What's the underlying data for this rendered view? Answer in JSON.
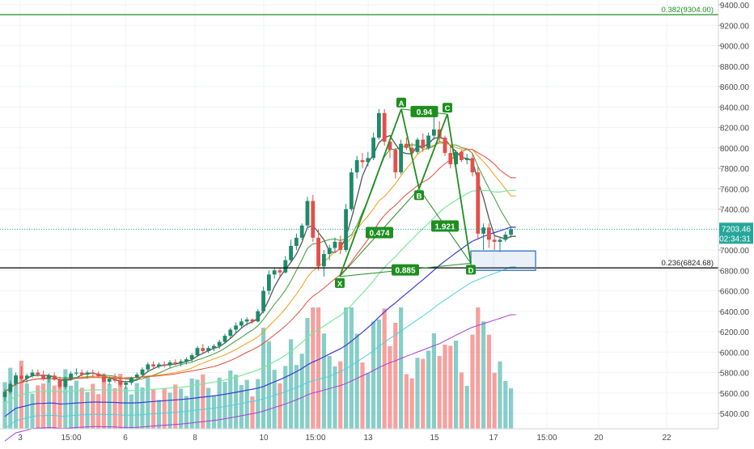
{
  "chart_data": {
    "type": "candlestick",
    "y_axis": {
      "min": 5300,
      "max": 9500,
      "ticks": [
        5400,
        5600,
        5800,
        6000,
        6200,
        6400,
        6600,
        6800,
        7000,
        7200,
        7400,
        7600,
        7800,
        8000,
        8200,
        8400,
        8600,
        8800,
        9000,
        9200,
        9400
      ],
      "tick_labels": [
        "5400.00",
        "5600.00",
        "5800.00",
        "6000.00",
        "6200.00",
        "6400.00",
        "6600.00",
        "6800.00",
        "7000.00",
        "7200.00",
        "7400.00",
        "7600.00",
        "7800.00",
        "8000.00",
        "8200.00",
        "8400.00",
        "8600.00",
        "8800.00",
        "9000.00",
        "9200.00",
        "9400.00"
      ]
    },
    "x_axis": {
      "tick_labels": [
        "3",
        "15:00",
        "6",
        "8",
        "10",
        "15:00",
        "13",
        "15",
        "17",
        "15:00",
        "20",
        "22"
      ]
    },
    "last_price": {
      "value": 7203.46,
      "label": "7203.46",
      "countdown": "02:34:31",
      "color": "#26a69a"
    },
    "fib_levels": [
      {
        "label": "0.382(9304.00)",
        "value": 9304,
        "color": "#1e8e1e"
      },
      {
        "label": "0.236(6824.68)",
        "value": 6824.68,
        "color": "#000000"
      }
    ],
    "harmonic_pattern": {
      "points": [
        {
          "name": "X",
          "price": 6740
        },
        {
          "name": "A",
          "price": 8380
        },
        {
          "name": "B",
          "price": 7600
        },
        {
          "name": "C",
          "price": 8330
        },
        {
          "name": "D",
          "price": 6870
        }
      ],
      "ratios": [
        "0.474",
        "0.94",
        "1.921",
        "0.885"
      ],
      "color": "#1e8e1e"
    },
    "target_zone": {
      "top": 6990,
      "bottom": 6800,
      "color": "#4a86c8"
    },
    "candles": [
      [
        5560,
        5640,
        5520,
        5610
      ],
      [
        5610,
        5720,
        5590,
        5690
      ],
      [
        5690,
        5800,
        5670,
        5770
      ],
      [
        5770,
        5860,
        5720,
        5740
      ],
      [
        5740,
        5790,
        5700,
        5770
      ],
      [
        5770,
        5830,
        5750,
        5800
      ],
      [
        5800,
        5830,
        5760,
        5780
      ],
      [
        5780,
        5820,
        5720,
        5740
      ],
      [
        5740,
        5790,
        5700,
        5770
      ],
      [
        5770,
        5800,
        5720,
        5730
      ],
      [
        5730,
        5760,
        5640,
        5660
      ],
      [
        5660,
        5760,
        5640,
        5740
      ],
      [
        5740,
        5810,
        5720,
        5790
      ],
      [
        5790,
        5840,
        5770,
        5800
      ],
      [
        5800,
        5830,
        5760,
        5780
      ],
      [
        5780,
        5820,
        5740,
        5800
      ],
      [
        5800,
        5830,
        5760,
        5790
      ],
      [
        5790,
        5810,
        5750,
        5760
      ],
      [
        5760,
        5790,
        5700,
        5710
      ],
      [
        5710,
        5760,
        5680,
        5740
      ],
      [
        5740,
        5790,
        5700,
        5720
      ],
      [
        5720,
        5760,
        5660,
        5680
      ],
      [
        5680,
        5720,
        5640,
        5700
      ],
      [
        5700,
        5760,
        5680,
        5750
      ],
      [
        5750,
        5800,
        5720,
        5780
      ],
      [
        5780,
        5850,
        5760,
        5830
      ],
      [
        5830,
        5900,
        5810,
        5880
      ],
      [
        5880,
        5910,
        5840,
        5860
      ],
      [
        5860,
        5900,
        5840,
        5880
      ],
      [
        5880,
        5910,
        5850,
        5870
      ],
      [
        5870,
        5920,
        5850,
        5900
      ],
      [
        5900,
        5930,
        5870,
        5890
      ],
      [
        5890,
        5930,
        5860,
        5910
      ],
      [
        5910,
        5950,
        5880,
        5930
      ],
      [
        5930,
        5990,
        5900,
        5970
      ],
      [
        5970,
        6060,
        5950,
        6040
      ],
      [
        6040,
        6080,
        5990,
        6010
      ],
      [
        6010,
        6060,
        5990,
        6040
      ],
      [
        6040,
        6080,
        6010,
        6060
      ],
      [
        6060,
        6120,
        6030,
        6100
      ],
      [
        6100,
        6180,
        6080,
        6160
      ],
      [
        6160,
        6240,
        6140,
        6220
      ],
      [
        6220,
        6290,
        6180,
        6260
      ],
      [
        6260,
        6330,
        6230,
        6300
      ],
      [
        6300,
        6340,
        6260,
        6320
      ],
      [
        6320,
        6330,
        6280,
        6300
      ],
      [
        6300,
        6420,
        6290,
        6400
      ],
      [
        6400,
        6640,
        6380,
        6600
      ],
      [
        6600,
        6800,
        6560,
        6760
      ],
      [
        6760,
        6830,
        6720,
        6800
      ],
      [
        6800,
        6830,
        6740,
        6780
      ],
      [
        6780,
        6940,
        6770,
        6900
      ],
      [
        6900,
        7100,
        6880,
        7040
      ],
      [
        7040,
        7160,
        7000,
        7120
      ],
      [
        7120,
        7260,
        7100,
        7240
      ],
      [
        7240,
        7520,
        7220,
        7480
      ],
      [
        7480,
        7540,
        7080,
        7120
      ],
      [
        7120,
        7200,
        6800,
        6840
      ],
      [
        6840,
        7000,
        6740,
        6960
      ],
      [
        6960,
        7050,
        6900,
        7020
      ],
      [
        7020,
        7120,
        6980,
        7080
      ],
      [
        7080,
        7140,
        6960,
        7000
      ],
      [
        7000,
        7450,
        6980,
        7400
      ],
      [
        7400,
        7800,
        7380,
        7760
      ],
      [
        7760,
        7920,
        7700,
        7880
      ],
      [
        7880,
        7950,
        7800,
        7860
      ],
      [
        7860,
        7960,
        7820,
        7900
      ],
      [
        7900,
        8150,
        7880,
        8100
      ],
      [
        8100,
        8380,
        8080,
        8340
      ],
      [
        8340,
        8380,
        8020,
        8060
      ],
      [
        8060,
        8100,
        7900,
        7980
      ],
      [
        7980,
        8000,
        7700,
        7760
      ],
      [
        7760,
        8080,
        7740,
        8040
      ],
      [
        8040,
        8100,
        7980,
        8000
      ],
      [
        8000,
        8050,
        7920,
        7960
      ],
      [
        7960,
        8100,
        7940,
        8080
      ],
      [
        8080,
        8140,
        7960,
        8000
      ],
      [
        8000,
        8150,
        7980,
        8120
      ],
      [
        8120,
        8330,
        8080,
        8180
      ],
      [
        8180,
        8260,
        8060,
        8100
      ],
      [
        8100,
        8120,
        7920,
        7950
      ],
      [
        7950,
        8020,
        7800,
        7840
      ],
      [
        7840,
        7980,
        7780,
        7960
      ],
      [
        7960,
        7980,
        7860,
        7880
      ],
      [
        7880,
        7940,
        7840,
        7900
      ],
      [
        7900,
        7950,
        7720,
        7760
      ],
      [
        7760,
        7820,
        7100,
        7160
      ],
      [
        7160,
        7260,
        7000,
        7220
      ],
      [
        7220,
        7260,
        7020,
        7100
      ],
      [
        7100,
        7140,
        7000,
        7080
      ],
      [
        7080,
        7120,
        6980,
        7100
      ],
      [
        7100,
        7180,
        7080,
        7150
      ],
      [
        7150,
        7220,
        7120,
        7203
      ]
    ]
  }
}
